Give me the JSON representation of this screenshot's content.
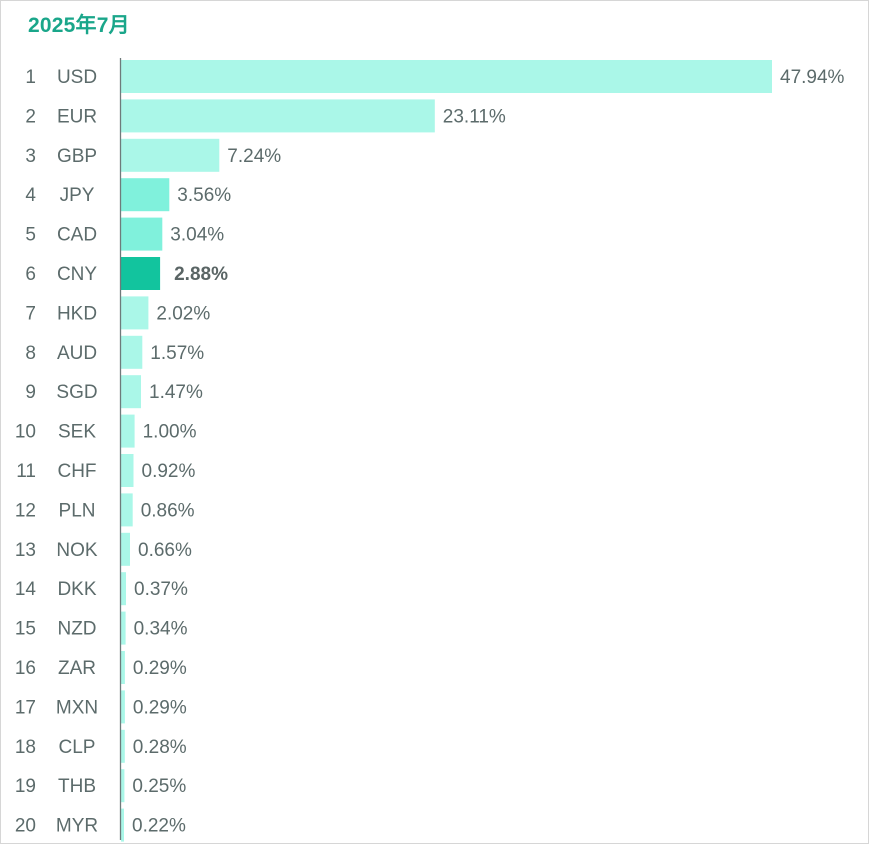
{
  "title": "2025年7月",
  "colors": {
    "title": "#1aa68a",
    "bar_light": "#aaf7e8",
    "bar_medium": "#80f1dc",
    "bar_highlight": "#12c49e",
    "axis": "#6e7b7b",
    "text": "#5c6b6b"
  },
  "chart_data": {
    "type": "bar",
    "orientation": "horizontal",
    "title": "2025年7月",
    "xlim": [
      0,
      47.94
    ],
    "grid": false,
    "legend": "none",
    "highlight_index": 5,
    "ranks": [
      "1",
      "2",
      "3",
      "4",
      "5",
      "6",
      "7",
      "8",
      "9",
      "10",
      "11",
      "12",
      "13",
      "14",
      "15",
      "16",
      "17",
      "18",
      "19",
      "20"
    ],
    "categories": [
      "USD",
      "EUR",
      "GBP",
      "JPY",
      "CAD",
      "CNY",
      "HKD",
      "AUD",
      "SGD",
      "SEK",
      "CHF",
      "PLN",
      "NOK",
      "DKK",
      "NZD",
      "ZAR",
      "MXN",
      "CLP",
      "THB",
      "MYR"
    ],
    "values": [
      47.94,
      23.11,
      7.24,
      3.56,
      3.04,
      2.88,
      2.02,
      1.57,
      1.47,
      1.0,
      0.92,
      0.86,
      0.66,
      0.37,
      0.34,
      0.29,
      0.29,
      0.28,
      0.25,
      0.22
    ],
    "labels": [
      "47.94%",
      "23.11%",
      "7.24%",
      "3.56%",
      "3.04%",
      "2.88%",
      "2.02%",
      "1.57%",
      "1.47%",
      "1.00%",
      "0.92%",
      "0.86%",
      "0.66%",
      "0.37%",
      "0.34%",
      "0.29%",
      "0.29%",
      "0.28%",
      "0.25%",
      "0.22%"
    ],
    "bar_tones": [
      "light",
      "light",
      "light",
      "medium",
      "medium",
      "highlight",
      "light",
      "light",
      "light",
      "light",
      "light",
      "light",
      "light",
      "light",
      "light",
      "light",
      "light",
      "light",
      "light",
      "light"
    ]
  }
}
